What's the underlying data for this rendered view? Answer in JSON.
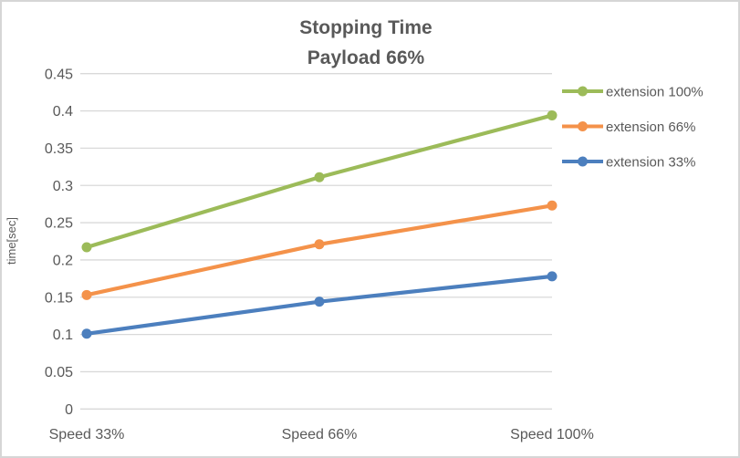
{
  "chart_data": {
    "type": "line",
    "title": "Stopping Time",
    "subtitle": "Payload 66%",
    "title_lines": [
      "Stopping Time",
      "Payload 66%"
    ],
    "ylabel": "time[sec]",
    "xlabel": "",
    "categories": [
      "Speed 33%",
      "Speed 66%",
      "Speed 100%"
    ],
    "series": [
      {
        "name": "extension 100%",
        "color": "#9CBB59",
        "values": [
          0.217,
          0.311,
          0.394
        ]
      },
      {
        "name": "extension 66%",
        "color": "#F4924A",
        "values": [
          0.153,
          0.221,
          0.273
        ]
      },
      {
        "name": "extension 33%",
        "color": "#4C7FBE",
        "values": [
          0.101,
          0.144,
          0.178
        ]
      }
    ],
    "ylim": [
      0,
      0.45
    ],
    "ytick_step": 0.05,
    "yticks": [
      "0",
      "0.05",
      "0.1",
      "0.15",
      "0.2",
      "0.25",
      "0.3",
      "0.35",
      "0.4",
      "0.45"
    ],
    "grid": true,
    "grid_color": "#D9D9D9",
    "text_color": "#595959",
    "marker": "circle",
    "legend_position": "right"
  }
}
